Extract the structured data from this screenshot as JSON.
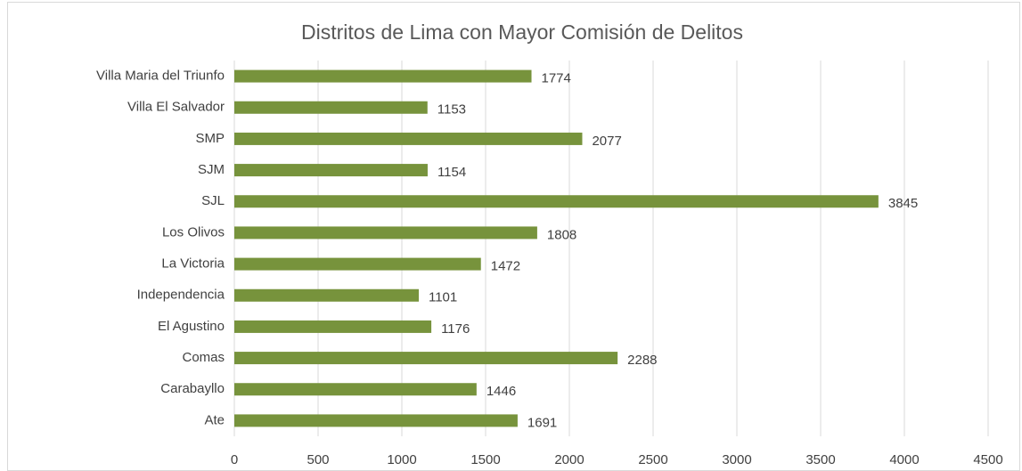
{
  "chart_data": {
    "type": "bar",
    "orientation": "horizontal",
    "title": "Distritos de Lima con Mayor Comisión de Delitos",
    "categories": [
      "Villa Maria del Triunfo",
      "Villa El Salvador",
      "SMP",
      "SJM",
      "SJL",
      "Los Olivos",
      "La Victoria",
      "Independencia",
      "El Agustino",
      "Comas",
      "Carabayllo",
      "Ate"
    ],
    "values": [
      1774,
      1153,
      2077,
      1154,
      3845,
      1808,
      1472,
      1101,
      1176,
      2288,
      1446,
      1691
    ],
    "color": "#77933c",
    "xlim": [
      0,
      4500
    ],
    "xticks": [
      0,
      500,
      1000,
      1500,
      2000,
      2500,
      3000,
      3500,
      4000,
      4500
    ],
    "grid": true
  }
}
